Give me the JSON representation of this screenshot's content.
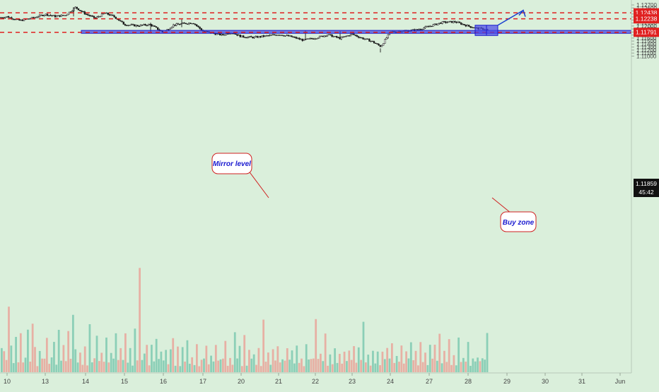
{
  "chart_data": {
    "type": "candlestick",
    "title": "",
    "xlabel": "",
    "ylabel": "",
    "ylim": [
      1.11,
      1.1272
    ],
    "date_ticks": [
      "10",
      "13",
      "14",
      "15",
      "16",
      "17",
      "20",
      "21",
      "22",
      "23",
      "24",
      "27",
      "28",
      "29",
      "30",
      "31",
      "Jun"
    ],
    "price_ticks": [
      "1.12700",
      "1.12600",
      "1.12500",
      "1.12400",
      "1.12300",
      "1.12200",
      "1.12100",
      "1.12000",
      "1.11900",
      "1.11800",
      "1.11700",
      "1.11600",
      "1.11500",
      "1.11400",
      "1.11300",
      "1.11200",
      "1.11100",
      "1.11000"
    ],
    "price_tick_values": [
      1.127,
      1.126,
      1.125,
      1.124,
      1.123,
      1.122,
      1.121,
      1.12,
      1.119,
      1.118,
      1.117,
      1.116,
      1.115,
      1.114,
      1.113,
      1.112,
      1.111,
      1.11
    ],
    "close_path": [
      {
        "d": "10",
        "v": 1.1231
      },
      {
        "d": "10",
        "v": 1.1218
      },
      {
        "d": "10",
        "v": 1.1227
      },
      {
        "d": "13",
        "v": 1.1239
      },
      {
        "d": "13",
        "v": 1.1232
      },
      {
        "d": "13",
        "v": 1.1236
      },
      {
        "d": "13",
        "v": 1.1262
      },
      {
        "d": "14",
        "v": 1.124
      },
      {
        "d": "14",
        "v": 1.1226
      },
      {
        "d": "14",
        "v": 1.1243
      },
      {
        "d": "14",
        "v": 1.123
      },
      {
        "d": "15",
        "v": 1.1205
      },
      {
        "d": "15",
        "v": 1.1201
      },
      {
        "d": "15",
        "v": 1.1205
      },
      {
        "d": "16",
        "v": 1.1178
      },
      {
        "d": "16",
        "v": 1.1203
      },
      {
        "d": "16",
        "v": 1.1208
      },
      {
        "d": "16",
        "v": 1.1211
      },
      {
        "d": "17",
        "v": 1.1183
      },
      {
        "d": "17",
        "v": 1.1176
      },
      {
        "d": "17",
        "v": 1.117
      },
      {
        "d": "17",
        "v": 1.1179
      },
      {
        "d": "20",
        "v": 1.1165
      },
      {
        "d": "20",
        "v": 1.1162
      },
      {
        "d": "20",
        "v": 1.1167
      },
      {
        "d": "21",
        "v": 1.1172
      },
      {
        "d": "21",
        "v": 1.1165
      },
      {
        "d": "21",
        "v": 1.1153
      },
      {
        "d": "22",
        "v": 1.116
      },
      {
        "d": "22",
        "v": 1.1171
      },
      {
        "d": "22",
        "v": 1.1159
      },
      {
        "d": "23",
        "v": 1.1173
      },
      {
        "d": "23",
        "v": 1.116
      },
      {
        "d": "23",
        "v": 1.115
      },
      {
        "d": "23",
        "v": 1.1132
      },
      {
        "d": "24",
        "v": 1.118
      },
      {
        "d": "24",
        "v": 1.1183
      },
      {
        "d": "24",
        "v": 1.1187
      },
      {
        "d": "27",
        "v": 1.1199
      },
      {
        "d": "27",
        "v": 1.1212
      },
      {
        "d": "27",
        "v": 1.1214
      },
      {
        "d": "28",
        "v": 1.12
      },
      {
        "d": "28",
        "v": 1.1193
      },
      {
        "d": "28",
        "v": 1.119
      },
      {
        "d": "28",
        "v": 1.1182
      },
      {
        "d": "28",
        "v": 1.1186
      }
    ],
    "horizontal_levels": [
      1.12438,
      1.12238,
      1.11791
    ],
    "mirror_zone": [
      1.1178,
      1.1183
    ],
    "buy_zone": [
      1.11825,
      1.11885
    ],
    "projection": {
      "from": 1.11885,
      "to": 1.1238
    },
    "last_price": 1.11859,
    "volume_path": [
      2,
      3,
      1,
      5,
      2,
      1,
      4,
      1,
      3,
      1,
      2,
      4,
      1,
      6,
      2,
      1,
      3,
      1,
      2,
      5,
      1,
      2,
      3,
      1,
      4,
      1,
      2,
      1,
      3,
      1,
      5,
      2,
      1,
      3,
      1,
      2,
      1,
      4,
      1,
      2,
      3,
      1,
      2,
      1,
      3,
      1,
      2,
      1,
      4,
      1,
      2,
      1,
      3,
      1,
      2,
      1,
      5,
      1,
      9,
      1,
      3,
      4,
      1,
      2,
      1,
      3,
      1,
      2,
      1,
      3,
      1,
      2,
      5,
      1,
      2,
      1,
      3,
      1,
      4,
      1,
      2,
      1,
      3,
      1,
      2,
      1,
      3,
      1,
      2,
      1,
      4,
      1,
      2,
      1,
      3,
      1,
      2,
      1,
      3,
      1,
      2,
      1,
      3,
      1,
      2,
      1,
      3,
      1,
      2,
      1,
      4,
      1,
      2,
      1,
      2,
      1,
      3,
      1,
      2,
      1,
      3,
      1,
      2,
      1,
      3,
      1,
      2,
      1,
      3,
      1,
      2,
      1,
      4,
      1,
      2,
      1,
      3,
      1,
      2,
      1,
      3,
      1,
      2,
      1,
      3,
      1,
      2,
      1,
      3,
      1,
      2,
      1,
      7,
      1,
      2,
      1,
      3,
      1,
      2,
      1,
      3,
      1,
      2,
      1,
      3,
      1,
      2,
      1,
      3,
      1,
      2,
      1,
      3,
      1,
      2,
      1,
      3,
      1,
      2,
      1,
      4,
      1,
      2,
      1,
      3,
      1,
      2,
      1,
      3,
      1,
      2,
      1,
      3,
      1,
      2,
      1,
      3,
      1,
      2,
      1,
      2,
      1,
      2,
      1,
      4
    ],
    "annotations": [
      "Mirror level",
      "Buy zone"
    ]
  },
  "axis": {
    "level_top_label": "1.12438",
    "level_mid_label": "1.12238",
    "last_price_label": "1.11859",
    "timer_label": "45:42",
    "level_bottom_label": "1.11791"
  },
  "annotations": {
    "mirror": "Mirror level",
    "buy": "Buy zone"
  },
  "colors": {
    "background": "#daefdb",
    "bull": "#1a1a1a",
    "bear": "#1a1a1a",
    "level": "#e02020",
    "zone": "#2020e0",
    "vol_up": "#7cc9b0",
    "vol_down": "#e9a59a",
    "arrow": "#1a3fd0"
  }
}
